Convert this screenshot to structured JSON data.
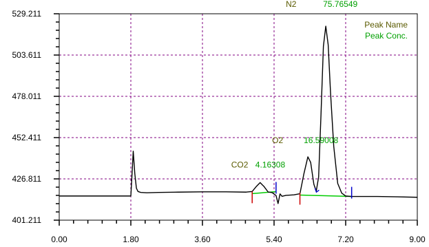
{
  "chart_data": {
    "type": "line",
    "title": "",
    "xlabel": "",
    "ylabel": "",
    "xlim": [
      0,
      9
    ],
    "ylim": [
      401.211,
      529.211
    ],
    "x_ticks": [
      "0.00",
      "1.80",
      "3.60",
      "5.40",
      "7.20",
      "9.00"
    ],
    "y_ticks": [
      "401.211",
      "426.811",
      "452.411",
      "478.011",
      "503.611",
      "529.211"
    ],
    "grid": true,
    "legend": {
      "position": "top-right",
      "entries": [
        "Peak Name",
        "Peak Conc."
      ]
    },
    "colors": {
      "signal": "#000000",
      "baseline": "#00cc00",
      "peak_name": "#5a5a00",
      "peak_conc": "#00a000",
      "grid": "#800080",
      "start_marker": "#cc0000",
      "end_marker": "#0000cc"
    },
    "series": [
      {
        "x": [
          0.0,
          1.8,
          1.82,
          1.86,
          1.9,
          1.94,
          1.98,
          2.05,
          2.2,
          2.5,
          3.0,
          3.6,
          4.2,
          4.7,
          4.85,
          4.95,
          5.05,
          5.15,
          5.25,
          5.35,
          5.45,
          5.5,
          5.55,
          5.6,
          5.7,
          5.9,
          6.05,
          6.15,
          6.25,
          6.32,
          6.4,
          6.46,
          6.52,
          6.58,
          6.64,
          6.7,
          6.76,
          6.82,
          6.9,
          7.0,
          7.1,
          7.2,
          7.35,
          7.6,
          8.0,
          8.5,
          9.0
        ],
        "y": [
          416.2,
          416.2,
          425.0,
          444.0,
          430.0,
          421.0,
          419.0,
          418.4,
          418.2,
          418.4,
          418.6,
          418.8,
          418.8,
          418.6,
          419.0,
          422.0,
          424.5,
          422.0,
          418.7,
          418.3,
          416.5,
          411.5,
          417.5,
          416.0,
          416.6,
          416.9,
          417.6,
          430.0,
          440.5,
          437.0,
          423.5,
          419.2,
          428.0,
          467.0,
          509.0,
          521.5,
          510.0,
          480.0,
          447.0,
          424.0,
          418.0,
          416.2,
          415.9,
          415.9,
          415.9,
          415.7,
          415.4
        ]
      }
    ],
    "baselines": [
      {
        "x": [
          4.85,
          5.45
        ],
        "y": [
          417.7,
          418.9
        ]
      },
      {
        "x": [
          6.05,
          7.35
        ],
        "y": [
          416.8,
          415.9
        ]
      }
    ],
    "markers": [
      {
        "x": 4.85,
        "y": 417.7,
        "kind": "start"
      },
      {
        "x": 5.45,
        "y": 418.9,
        "kind": "end"
      },
      {
        "x": 6.05,
        "y": 416.8,
        "kind": "start"
      },
      {
        "x": 6.48,
        "y": 419.0,
        "kind": "split"
      },
      {
        "x": 7.35,
        "y": 415.9,
        "kind": "end"
      }
    ],
    "peaks": [
      {
        "name": "CO2",
        "conc": "4.16308",
        "x": 5.05,
        "y": 424.5
      },
      {
        "name": "O2",
        "conc": "16.59008",
        "x": 6.25,
        "y": 440.5
      },
      {
        "name": "N2",
        "conc": "75.76549",
        "x": 6.7,
        "y": 521.5
      }
    ]
  }
}
